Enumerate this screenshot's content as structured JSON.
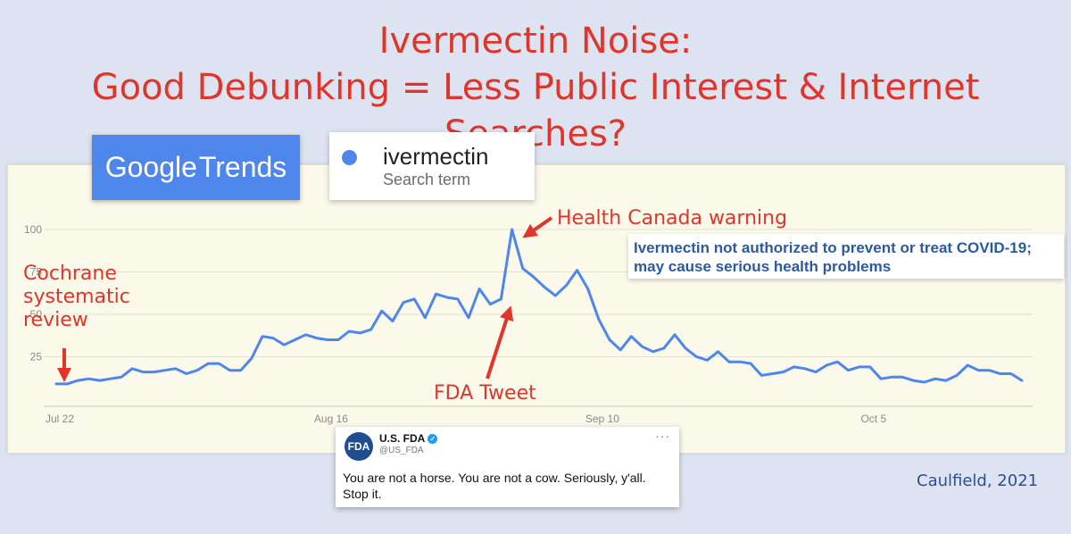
{
  "title_line1": "Ivermectin Noise:",
  "title_line2": "Good Debunking = Less Public Interest & Internet Searches?",
  "google_trends": {
    "logo_word1": "Google",
    "logo_word2": "Trends"
  },
  "search_term": {
    "name": "ivermectin",
    "sub": "Search term",
    "color": "#4f86ec"
  },
  "annotations": {
    "cochrane": [
      "Cochrane",
      "systematic",
      "review"
    ],
    "health_canada": "Health Canada warning",
    "fda_tweet": "FDA Tweet",
    "canada_box_line1": "Ivermectin not authorized to prevent or treat COVID-19;",
    "canada_box_line2": "may cause serious health problems",
    "arrow_color": "#e0352b"
  },
  "tweet": {
    "name": "U.S. FDA",
    "handle": "@US_FDA",
    "avatar": "FDA",
    "more": "···",
    "verified": "✓",
    "text_line1": "You are not a horse. You are not a cow. Seriously, y'all.",
    "text_line2": "Stop it."
  },
  "credit": "Caulfield, 2021",
  "chart_data": {
    "type": "line",
    "series": [
      {
        "name": "ivermectin",
        "color": "#4f86ec",
        "values": [
          9,
          9,
          11,
          12,
          11,
          12,
          13,
          18,
          16,
          16,
          17,
          18,
          15,
          17,
          21,
          21,
          17,
          17,
          24,
          37,
          36,
          32,
          35,
          38,
          36,
          35,
          35,
          40,
          39,
          41,
          52,
          46,
          57,
          59,
          48,
          62,
          60,
          59,
          48,
          65,
          56,
          59,
          100,
          77,
          72,
          66,
          61,
          67,
          76,
          65,
          47,
          35,
          29,
          37,
          31,
          28,
          30,
          38,
          30,
          25,
          23,
          28,
          22,
          22,
          21,
          14,
          15,
          16,
          19,
          18,
          16,
          20,
          22,
          17,
          19,
          19,
          12,
          13,
          13,
          11,
          10,
          12,
          11,
          14,
          20,
          17,
          17,
          15,
          15,
          11
        ]
      }
    ],
    "yticks": [
      25,
      50,
      75,
      100
    ],
    "ylim": [
      0,
      100
    ],
    "xtick_labels": [
      {
        "label": "Jul 22",
        "index": 0
      },
      {
        "label": "Aug 16",
        "index": 25
      },
      {
        "label": "Sep 10",
        "index": 50
      },
      {
        "label": "Oct 5",
        "index": 75
      }
    ],
    "grid": true
  }
}
